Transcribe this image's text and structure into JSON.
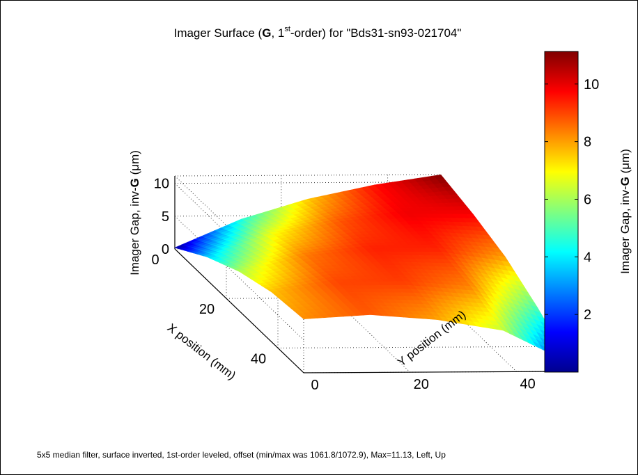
{
  "chart_data": {
    "type": "surface",
    "title": {
      "prefix": "Imager Surface (",
      "bold": "G",
      "middle": ", 1",
      "superscript": "st",
      "suffix": "-order) for \"Bds31-sn93-021704\""
    },
    "xlabel": "X position (mm)",
    "ylabel": "Y position (mm)",
    "zlabel": {
      "prefix": "Imager Gap, inv-",
      "bold": "G",
      "middle": " (",
      "greek": "μ",
      "suffix": "m)"
    },
    "x_ticks": [
      "0",
      "20",
      "40"
    ],
    "y_ticks": [
      "0",
      "20",
      "40"
    ],
    "z_ticks": [
      "0",
      "5",
      "10"
    ],
    "xlim": [
      0,
      50
    ],
    "ylim": [
      0,
      50
    ],
    "zlim": [
      0,
      11.13
    ],
    "colorbar": {
      "ticks": [
        "2",
        "4",
        "6",
        "8",
        "10"
      ],
      "tick_values": [
        2,
        4,
        6,
        8,
        10
      ],
      "range": [
        0,
        11.13
      ],
      "label": {
        "prefix": "Imager Gap, inv-",
        "bold": "G",
        "middle": " (",
        "greek": "μ",
        "suffix": "m)"
      },
      "colormap": "jet"
    },
    "surface": {
      "x": [
        0,
        12.5,
        25,
        37.5,
        50
      ],
      "y": [
        0,
        12.5,
        25,
        37.5,
        50
      ],
      "z": [
        [
          0.2,
          4.5,
          7.5,
          9.6,
          11.1
        ],
        [
          3.5,
          6.9,
          8.8,
          9.9,
          9.8
        ],
        [
          6.0,
          8.4,
          9.4,
          9.4,
          8.0
        ],
        [
          7.6,
          9.0,
          9.1,
          8.3,
          5.0
        ],
        [
          8.2,
          8.8,
          8.0,
          6.3,
          1.3
        ]
      ]
    },
    "grid": true,
    "view": "Left, Up"
  },
  "footer_note": "5x5 median filter, surface inverted, 1st-order leveled, offset (min/max was 1061.8/1072.9), Max=11.13, Left, Up"
}
